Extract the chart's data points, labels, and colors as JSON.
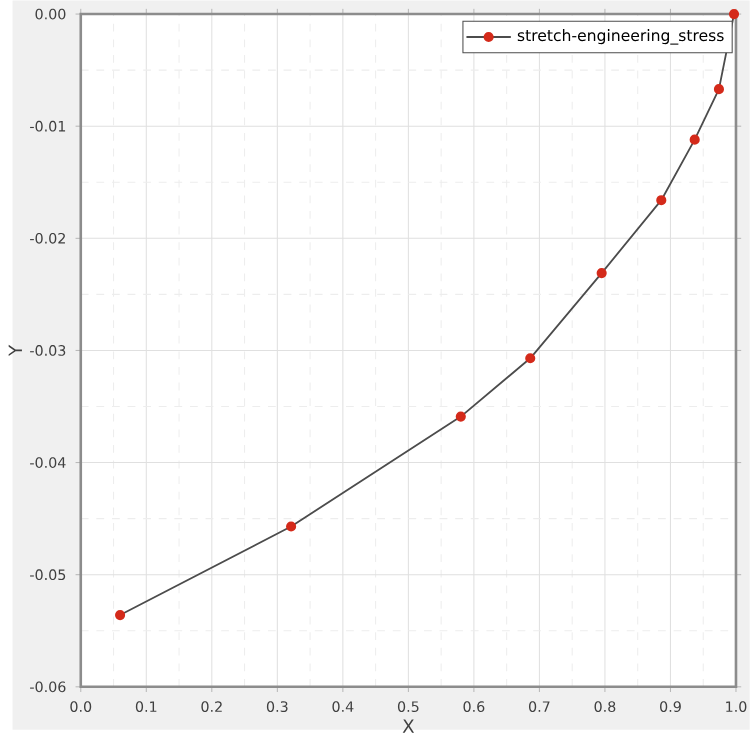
{
  "chart_data": {
    "type": "line",
    "xlabel": "X",
    "ylabel": "Y",
    "xlim": [
      0,
      1
    ],
    "ylim": [
      -0.06,
      0
    ],
    "xticks": [
      {
        "value": 0,
        "label": "0.0"
      },
      0.1,
      0.2,
      0.3,
      0.4,
      0.5,
      0.6,
      0.7,
      0.8,
      0.9,
      {
        "value": 1,
        "label": "1.0"
      }
    ],
    "yticks": [
      -0.06,
      -0.05,
      -0.04,
      -0.03,
      -0.02,
      -0.01,
      {
        "value": 0,
        "label": "0.00"
      }
    ],
    "grid": true,
    "legend": "top right",
    "marker": "circle",
    "line_style": "solid",
    "series": [
      {
        "name": "stretch-engineering_stress",
        "color": "#d42a1a",
        "x": [
          0.06,
          0.321,
          0.58,
          0.686,
          0.795,
          0.886,
          0.937,
          0.974,
          0.997
        ],
        "values": [
          -0.0536,
          -0.0457,
          -0.0359,
          -0.0307,
          -0.0231,
          -0.0166,
          -0.0112,
          -0.0067,
          0.0
        ]
      }
    ]
  }
}
